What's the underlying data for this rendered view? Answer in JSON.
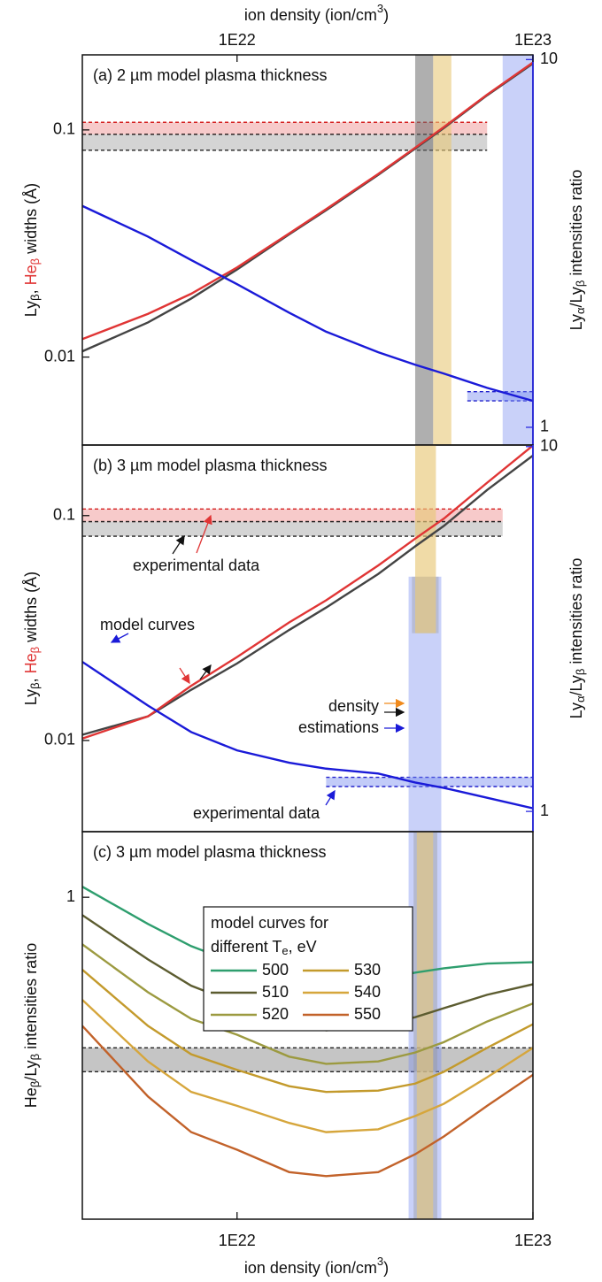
{
  "chart_data": [
    {
      "type": "line",
      "title": "(a) 2 µm model plasma thickness",
      "xaxis_position": "top",
      "xlabel": [
        "ion density (ion/cm",
        "3",
        ")"
      ],
      "xscale": "log",
      "yscale": "log",
      "xlim": [
        3e+21,
        1e+23
      ],
      "xticks": [
        {
          "value": 1e+22,
          "label": "1E22"
        },
        {
          "value": 1e+23,
          "label": "1E23"
        }
      ],
      "ylim": [
        0.0041,
        0.214
      ],
      "yticks": [
        0.01,
        0.1
      ],
      "y2lim": [
        0.895,
        10.3
      ],
      "y2ticks": [
        1,
        10
      ],
      "y2color": "#2a2ae0",
      "ylabel": [
        "Ly",
        "β",
        ", ",
        "He",
        "β",
        " widths (Å)"
      ],
      "y2label": [
        "Ly",
        "α",
        "/Ly",
        "β",
        " intensities ratio"
      ],
      "bands": [
        {
          "y0": 0.0956,
          "y1": 0.108,
          "x1": 7e+22,
          "fill": "rgba(240,150,150,0.5)",
          "edge": "#d42020"
        },
        {
          "y0": 0.0814,
          "y1": 0.0956,
          "x1": 7e+22,
          "fill": "rgba(170,170,170,0.5)",
          "edge": "#222222"
        },
        {
          "axis": "y2",
          "y0": 1.18,
          "y1": 1.25,
          "x0": 6e+22,
          "fill": "rgba(120,140,240,0.45)",
          "edge": "#2222cc"
        },
        {
          "x0": 4e+22,
          "x1": 4.6e+22,
          "fill": "rgba(110,110,110,0.55)"
        },
        {
          "x0": 4.6e+22,
          "x1": 5.3e+22,
          "fill": "rgba(232,200,120,0.6)"
        },
        {
          "x0": 7.9e+22,
          "x1": 1e+23,
          "fill": "rgba(120,140,240,0.4)"
        }
      ],
      "x": [
        3e+21,
        5e+21,
        7e+21,
        1e+22,
        1.5e+22,
        2e+22,
        3e+22,
        4e+22,
        5e+22,
        7e+22,
        1e+23
      ],
      "series": [
        {
          "color": "#444444",
          "values": [
            0.0106,
            0.0142,
            0.0181,
            0.0243,
            0.0347,
            0.0443,
            0.0634,
            0.0828,
            0.102,
            0.142,
            0.196
          ]
        },
        {
          "color": "#e03535",
          "values": [
            0.012,
            0.0155,
            0.019,
            0.0248,
            0.035,
            0.0448,
            0.064,
            0.0835,
            0.103,
            0.143,
            0.198
          ]
        },
        {
          "color": "#1a1ad8",
          "axis": "y2",
          "values": [
            4.0,
            3.3,
            2.85,
            2.45,
            2.05,
            1.82,
            1.6,
            1.48,
            1.4,
            1.28,
            1.18
          ]
        }
      ]
    },
    {
      "type": "line",
      "title": "(b) 3 µm model plasma thickness",
      "xscale": "log",
      "yscale": "log",
      "xlim": [
        3e+21,
        1e+23
      ],
      "ylim": [
        0.00393,
        0.206
      ],
      "yticks": [
        0.01,
        0.1
      ],
      "y2lim": [
        0.88,
        10.1
      ],
      "y2ticks": [
        1,
        10
      ],
      "y2color": "#2a2ae0",
      "ylabel": [
        "Ly",
        "β",
        ", ",
        "He",
        "β",
        " widths (Å)"
      ],
      "y2label": [
        "Ly",
        "α",
        "/Ly",
        "β",
        " intensities ratio"
      ],
      "annotations": [
        "experimental data",
        "model curves",
        "density",
        "estimations",
        "experimental data"
      ],
      "bands": [
        {
          "y0": 0.094,
          "y1": 0.107,
          "x1": 7.9e+22,
          "fill": "rgba(240,150,150,0.5)",
          "edge": "#d42020"
        },
        {
          "y0": 0.081,
          "y1": 0.094,
          "x1": 7.9e+22,
          "fill": "rgba(170,170,170,0.5)",
          "edge": "#222222"
        },
        {
          "axis": "y2",
          "y0": 1.17,
          "y1": 1.24,
          "x0": 2e+22,
          "fill": "rgba(120,140,240,0.45)",
          "edge": "#2222cc"
        },
        {
          "x0": 3.8e+22,
          "x1": 4.9e+22,
          "y1": 0.0535,
          "fill": "rgba(120,140,240,0.4)"
        },
        {
          "x0": 3.9e+22,
          "x1": 4.8e+22,
          "y0": 0.03,
          "y1": 0.0535,
          "fill": "rgba(150,150,150,0.35)"
        },
        {
          "x0": 4e+22,
          "x1": 4.7e+22,
          "y0": 0.03,
          "fill": "rgba(232,200,120,0.65)"
        }
      ],
      "x": [
        3e+21,
        5e+21,
        7e+21,
        1e+22,
        1.5e+22,
        2e+22,
        3e+22,
        4e+22,
        5e+22,
        7e+22,
        1e+23
      ],
      "series": [
        {
          "color": "#444444",
          "values": [
            0.0106,
            0.0128,
            0.0168,
            0.022,
            0.031,
            0.039,
            0.055,
            0.073,
            0.09,
            0.13,
            0.185
          ]
        },
        {
          "color": "#e03535",
          "values": [
            0.0102,
            0.0128,
            0.0175,
            0.0235,
            0.0335,
            0.042,
            0.06,
            0.079,
            0.097,
            0.14,
            0.205
          ]
        },
        {
          "color": "#1a1ad8",
          "axis": "y2",
          "values": [
            2.57,
            1.95,
            1.65,
            1.47,
            1.36,
            1.31,
            1.27,
            1.2,
            1.16,
            1.09,
            1.02
          ]
        }
      ]
    },
    {
      "type": "line",
      "title": "(c) 3 µm model plasma thickness",
      "xaxis_position": "bottom",
      "xlabel": [
        "ion density (ion/cm",
        "3",
        ")"
      ],
      "xscale": "log",
      "yscale": "log",
      "xlim": [
        3e+21,
        1e+23
      ],
      "xticks": [
        {
          "value": 1e+22,
          "label": "1E22"
        },
        {
          "value": 1e+23,
          "label": "1E23"
        }
      ],
      "ylim": [
        0.444,
        1.18
      ],
      "yticks": [
        1
      ],
      "ylabel": [
        "He",
        "β",
        "/Ly",
        "β",
        " intensities ratio"
      ],
      "legend_title": [
        "model curves for",
        "different T",
        "e",
        ", eV"
      ],
      "bands": [
        {
          "y0": 0.644,
          "y1": 0.684,
          "fill": "rgba(150,150,150,0.55)",
          "edge": "#222222"
        },
        {
          "x0": 3.8e+22,
          "x1": 4.9e+22,
          "fill": "rgba(120,140,240,0.4)"
        },
        {
          "x0": 3.95e+22,
          "x1": 4.75e+22,
          "fill": "rgba(150,150,150,0.4)"
        },
        {
          "x0": 4.05e+22,
          "x1": 4.6e+22,
          "fill": "rgba(232,200,120,0.6)"
        }
      ],
      "x": [
        3e+21,
        5e+21,
        7e+21,
        1e+22,
        1.5e+22,
        2e+22,
        3e+22,
        4e+22,
        5e+22,
        7e+22,
        1e+23
      ],
      "series": [
        {
          "name": "500",
          "color": "#2e9e6e",
          "values": [
            1.027,
            0.935,
            0.884,
            0.846,
            0.812,
            0.803,
            0.812,
            0.827,
            0.836,
            0.846,
            0.849
          ]
        },
        {
          "name": "510",
          "color": "#5c5c30",
          "values": [
            0.956,
            0.855,
            0.8,
            0.765,
            0.731,
            0.715,
            0.723,
            0.739,
            0.756,
            0.782,
            0.803
          ]
        },
        {
          "name": "520",
          "color": "#9c9a40",
          "values": [
            0.888,
            0.787,
            0.736,
            0.707,
            0.669,
            0.657,
            0.661,
            0.676,
            0.694,
            0.731,
            0.765
          ]
        },
        {
          "name": "530",
          "color": "#c39a2c",
          "values": [
            0.833,
            0.723,
            0.673,
            0.647,
            0.621,
            0.612,
            0.614,
            0.625,
            0.644,
            0.684,
            0.726
          ]
        },
        {
          "name": "540",
          "color": "#d6a63c",
          "values": [
            0.772,
            0.661,
            0.612,
            0.591,
            0.566,
            0.553,
            0.557,
            0.576,
            0.594,
            0.635,
            0.684
          ]
        },
        {
          "name": "550",
          "color": "#c2622a",
          "values": [
            0.723,
            0.605,
            0.553,
            0.529,
            0.5,
            0.495,
            0.5,
            0.523,
            0.547,
            0.591,
            0.639
          ]
        }
      ]
    }
  ]
}
